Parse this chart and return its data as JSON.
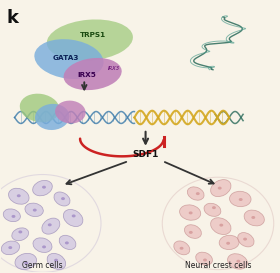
{
  "background_color": "#f8f3e8",
  "title_label": "k",
  "trps1_label": "TRPS1",
  "gata3_label": "GATA3",
  "irx5_label": "IRX5",
  "irx3_label": "IRX3",
  "sdf1_label": "SDF1",
  "germ_label": "Germ cells",
  "neural_label": "Neural crest cells",
  "trps1_color": "#9dc87a",
  "gata3_color": "#7aaedc",
  "irx5_color": "#c080b8",
  "dna_color_blue": "#3a7aaa",
  "dna_color_yellow": "#d4a820",
  "dna_color_teal": "#2a6a5a",
  "arrow_color_red": "#cc2222",
  "arrow_color_dark": "#333333",
  "cell_color_left": "#c8bce0",
  "cell_color_right": "#e8b8b8",
  "cell_edge_left": "#9080b0",
  "cell_edge_right": "#c08888"
}
